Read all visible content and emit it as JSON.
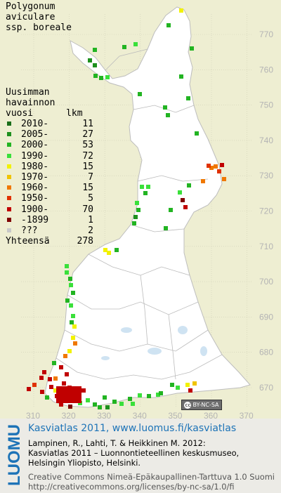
{
  "map": {
    "title_lines": [
      "Polygonum",
      "aviculare",
      "ssp. boreale"
    ],
    "legend_heading_lines": [
      "Uusimman",
      "havainnon",
      "vuosi      lkm"
    ],
    "legend": [
      {
        "label": "2010-",
        "count": "11",
        "color": "#1a6e1a"
      },
      {
        "label": "2005-",
        "count": "27",
        "color": "#1e901e"
      },
      {
        "label": "2000-",
        "count": "53",
        "color": "#22b422"
      },
      {
        "label": "1990-",
        "count": "72",
        "color": "#3ae03a"
      },
      {
        "label": "1980-",
        "count": "15",
        "color": "#f2f200"
      },
      {
        "label": "1970-",
        "count": "7",
        "color": "#f0c400"
      },
      {
        "label": "1960-",
        "count": "15",
        "color": "#f07800"
      },
      {
        "label": "1950-",
        "count": "5",
        "color": "#e03200"
      },
      {
        "label": "1900-",
        "count": "70",
        "color": "#c00000"
      },
      {
        "label": "-1899",
        "count": "1",
        "color": "#800000"
      },
      {
        "label": "???",
        "count": "2",
        "color": "#c8c8c8"
      }
    ],
    "total_label": "Yhteensä",
    "total_count": "278",
    "grid_right_labels": [
      "770",
      "760",
      "750",
      "740",
      "730",
      "720",
      "710",
      "700",
      "690",
      "680",
      "670"
    ],
    "grid_bottom_labels": [
      "310",
      "320",
      "330",
      "340",
      "350",
      "360",
      "370"
    ],
    "license_badge": "BY-NC-SA"
  },
  "footer": {
    "logo_text": "LUOMUS",
    "title": "Kasviatlas 2011, www.luomus.fi/kasviatlas",
    "citation_lines": [
      "Lampinen, R., Lahti, T. & Heikkinen M. 2012:",
      "Kasviatlas 2011 – Luonnontieteellinen keskusmuseo,",
      "Helsingin Yliopisto, Helsinki."
    ],
    "license_lines": [
      "Creative Commons Nimeä-Epäkaupallinen-Tarttuva 1.0 Suomi",
      "http://creativecommons.org/licenses/by-nc-sa/1.0/fi"
    ]
  }
}
